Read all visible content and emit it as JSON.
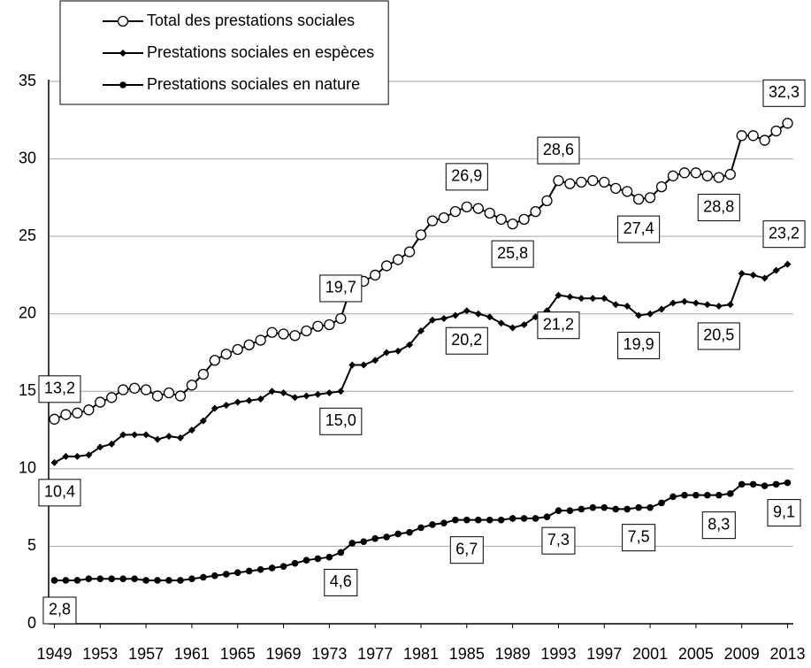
{
  "chart_data": {
    "type": "line",
    "x": [
      1949,
      1950,
      1951,
      1952,
      1953,
      1954,
      1955,
      1956,
      1957,
      1958,
      1959,
      1960,
      1961,
      1962,
      1963,
      1964,
      1965,
      1966,
      1967,
      1968,
      1969,
      1970,
      1971,
      1972,
      1973,
      1974,
      1975,
      1976,
      1977,
      1978,
      1979,
      1980,
      1981,
      1982,
      1983,
      1984,
      1985,
      1986,
      1987,
      1988,
      1989,
      1990,
      1991,
      1992,
      1993,
      1994,
      1995,
      1996,
      1997,
      1998,
      1999,
      2000,
      2001,
      2002,
      2003,
      2004,
      2005,
      2006,
      2007,
      2008,
      2009,
      2010,
      2011,
      2012,
      2013
    ],
    "xlim": [
      1948.5,
      2013.5
    ],
    "xticks": [
      1949,
      1953,
      1957,
      1961,
      1965,
      1969,
      1973,
      1977,
      1981,
      1985,
      1989,
      1993,
      1997,
      2001,
      2005,
      2009,
      2013
    ],
    "ylim": [
      0,
      35
    ],
    "yticks": [
      0,
      5,
      10,
      15,
      20,
      25,
      30,
      35
    ],
    "grid": true,
    "legend": "upper left",
    "series": [
      {
        "name": "Total des prestations sociales",
        "color": "#000000",
        "marker": "open-circle",
        "values": [
          13.2,
          13.5,
          13.6,
          13.8,
          14.3,
          14.6,
          15.1,
          15.2,
          15.1,
          14.7,
          14.9,
          14.7,
          15.4,
          16.1,
          17.0,
          17.4,
          17.7,
          18.0,
          18.3,
          18.8,
          18.7,
          18.6,
          18.9,
          19.2,
          19.3,
          19.7,
          22.0,
          22.1,
          22.5,
          23.1,
          23.5,
          24.0,
          25.1,
          26.0,
          26.2,
          26.6,
          26.9,
          26.8,
          26.5,
          26.1,
          25.8,
          26.1,
          26.6,
          27.3,
          28.6,
          28.4,
          28.5,
          28.6,
          28.5,
          28.1,
          27.9,
          27.4,
          27.5,
          28.2,
          28.9,
          29.1,
          29.1,
          28.9,
          28.8,
          29.0,
          31.5,
          31.5,
          31.2,
          31.8,
          32.3
        ],
        "value_labels": [
          "13,2",
          null,
          null,
          null,
          null,
          null,
          null,
          null,
          null,
          null,
          null,
          null,
          null,
          null,
          null,
          null,
          null,
          null,
          null,
          null,
          null,
          null,
          null,
          null,
          null,
          "19,7",
          null,
          null,
          null,
          null,
          null,
          null,
          null,
          null,
          null,
          null,
          "26,9",
          null,
          null,
          null,
          "25,8",
          null,
          null,
          null,
          "28,6",
          null,
          null,
          null,
          null,
          null,
          null,
          "27,4",
          null,
          null,
          null,
          null,
          null,
          null,
          "28,8",
          null,
          null,
          null,
          null,
          null,
          "32,3"
        ]
      },
      {
        "name": "Prestations sociales en espèces",
        "color": "#000000",
        "marker": "diamond",
        "values": [
          10.4,
          10.8,
          10.8,
          10.9,
          11.4,
          11.6,
          12.2,
          12.2,
          12.2,
          11.9,
          12.1,
          12.0,
          12.5,
          13.1,
          13.9,
          14.1,
          14.3,
          14.4,
          14.5,
          15.0,
          14.9,
          14.6,
          14.7,
          14.8,
          14.9,
          15.0,
          16.7,
          16.7,
          17.0,
          17.5,
          17.6,
          18.0,
          18.9,
          19.6,
          19.7,
          19.9,
          20.2,
          20.0,
          19.8,
          19.4,
          19.1,
          19.3,
          19.8,
          20.2,
          21.2,
          21.1,
          21.0,
          21.0,
          21.0,
          20.6,
          20.5,
          19.9,
          20.0,
          20.3,
          20.7,
          20.8,
          20.7,
          20.6,
          20.5,
          20.6,
          22.6,
          22.5,
          22.3,
          22.8,
          23.2
        ],
        "value_labels": [
          "10,4",
          null,
          null,
          null,
          null,
          null,
          null,
          null,
          null,
          null,
          null,
          null,
          null,
          null,
          null,
          null,
          null,
          null,
          null,
          null,
          null,
          null,
          null,
          null,
          null,
          "15,0",
          null,
          null,
          null,
          null,
          null,
          null,
          null,
          null,
          null,
          null,
          "20,2",
          null,
          null,
          null,
          null,
          null,
          null,
          null,
          "21,2",
          null,
          null,
          null,
          null,
          null,
          null,
          "19,9",
          null,
          null,
          null,
          null,
          null,
          null,
          "20,5",
          null,
          null,
          null,
          null,
          null,
          "23,2"
        ]
      },
      {
        "name": "Prestations sociales en nature",
        "color": "#000000",
        "marker": "dot",
        "values": [
          2.8,
          2.8,
          2.8,
          2.9,
          2.9,
          2.9,
          2.9,
          2.9,
          2.8,
          2.8,
          2.8,
          2.8,
          2.9,
          3.0,
          3.1,
          3.2,
          3.3,
          3.4,
          3.5,
          3.6,
          3.7,
          3.9,
          4.1,
          4.2,
          4.3,
          4.6,
          5.2,
          5.3,
          5.5,
          5.6,
          5.8,
          5.9,
          6.2,
          6.4,
          6.5,
          6.7,
          6.7,
          6.7,
          6.7,
          6.7,
          6.8,
          6.8,
          6.8,
          6.9,
          7.3,
          7.3,
          7.4,
          7.5,
          7.5,
          7.4,
          7.4,
          7.5,
          7.5,
          7.8,
          8.2,
          8.3,
          8.3,
          8.3,
          8.3,
          8.4,
          9.0,
          9.0,
          8.9,
          9.0,
          9.1
        ],
        "value_labels": [
          "2,8",
          null,
          null,
          null,
          null,
          null,
          null,
          null,
          null,
          null,
          null,
          null,
          null,
          null,
          null,
          null,
          null,
          null,
          null,
          null,
          null,
          null,
          null,
          null,
          null,
          "4,6",
          null,
          null,
          null,
          null,
          null,
          null,
          null,
          null,
          null,
          null,
          "6,7",
          null,
          null,
          null,
          null,
          null,
          null,
          null,
          "7,3",
          null,
          null,
          null,
          null,
          null,
          null,
          "7,5",
          null,
          null,
          null,
          null,
          null,
          null,
          "8,3",
          null,
          null,
          null,
          null,
          null,
          "9,1"
        ]
      }
    ]
  }
}
